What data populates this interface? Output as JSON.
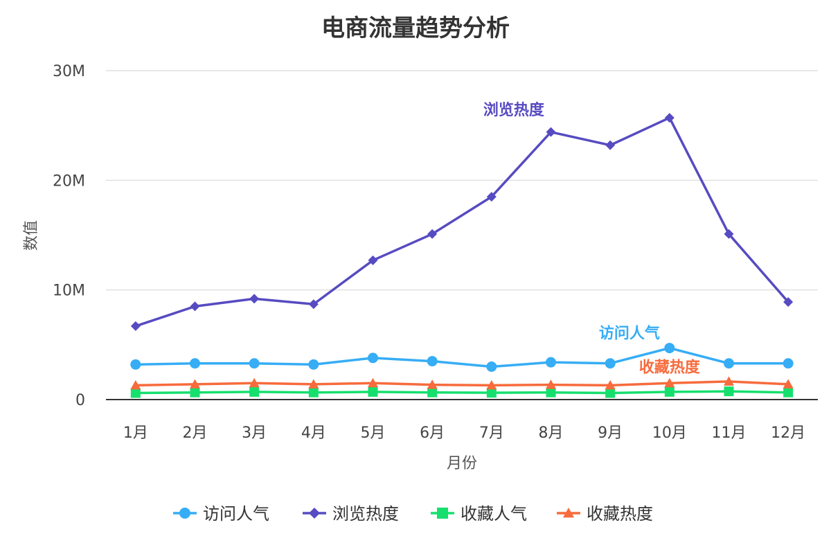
{
  "chart_data": {
    "type": "line",
    "title": "电商流量趋势分析",
    "xlabel": "月份",
    "ylabel": "数值",
    "categories": [
      "1月",
      "2月",
      "3月",
      "4月",
      "5月",
      "6月",
      "7月",
      "8月",
      "9月",
      "10月",
      "11月",
      "12月"
    ],
    "ylim": [
      0,
      30000000
    ],
    "yticks": [
      0,
      10000000,
      20000000,
      30000000
    ],
    "ytick_labels": [
      "0",
      "10M",
      "20M",
      "30M"
    ],
    "grid": true,
    "legend_position": "bottom",
    "series": [
      {
        "name": "访问人气",
        "color": "#36ADF5",
        "marker": "circle",
        "values": [
          3200000,
          3300000,
          3300000,
          3200000,
          3800000,
          3500000,
          3000000,
          3400000,
          3300000,
          4700000,
          3300000,
          3300000
        ]
      },
      {
        "name": "浏览热度",
        "color": "#574BC1",
        "marker": "diamond",
        "values": [
          6700000,
          8500000,
          9200000,
          8700000,
          12700000,
          15100000,
          18500000,
          24400000,
          23200000,
          25700000,
          15100000,
          8900000
        ]
      },
      {
        "name": "收藏人气",
        "color": "#17DF6E",
        "marker": "square",
        "values": [
          600000,
          650000,
          700000,
          650000,
          700000,
          650000,
          620000,
          650000,
          600000,
          700000,
          750000,
          650000
        ]
      },
      {
        "name": "收藏热度",
        "color": "#F76B3C",
        "marker": "triangle",
        "values": [
          1300000,
          1400000,
          1500000,
          1400000,
          1500000,
          1350000,
          1300000,
          1350000,
          1300000,
          1500000,
          1650000,
          1400000
        ]
      }
    ],
    "annotations": [
      {
        "text": "浏览热度",
        "series": 1
      },
      {
        "text": "访问人气",
        "series": 0
      },
      {
        "text": "收藏热度",
        "series": 3
      }
    ]
  }
}
